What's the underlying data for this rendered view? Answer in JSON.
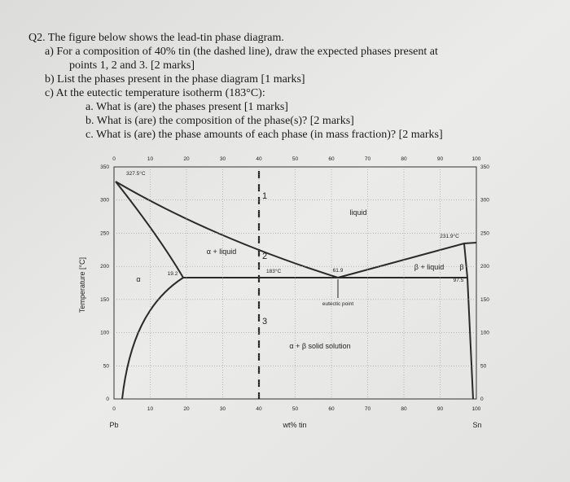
{
  "question": {
    "title": "Q2. The figure below shows the lead-tin phase diagram.",
    "lines": [
      "a)  For a composition of 40% tin (the dashed line), draw the expected phases present at",
      "points 1, 2 and 3. [2 marks]",
      "b)  List the phases present in the phase diagram [1 marks]",
      "c)  At the eutectic temperature isotherm (183°C):",
      "a.   What is (are) the phases present [1 marks]",
      "b.   What is (are) the composition of the phase(s)? [2 marks]",
      "c.   What is (are) the phase amounts of each phase (in mass fraction)? [2 marks]"
    ]
  },
  "diagram": {
    "y_label": "Temperature [°C]",
    "x_label": "wt% tin",
    "left_end": "Pb",
    "right_end": "Sn",
    "temperature_ticks": [
      "350",
      "300",
      "250",
      "200",
      "150",
      "100",
      "50",
      "0"
    ],
    "composition_ticks": [
      "0",
      "10",
      "20",
      "30",
      "40",
      "50",
      "60",
      "70",
      "80",
      "90",
      "100"
    ],
    "labels": {
      "lead_melting": "327.5°C",
      "liquid": "liquid",
      "alpha_liquid": "α + liquid",
      "point1": "1",
      "point2": "2",
      "point3": "3",
      "eutectic_temp": "183°C",
      "eutectic_comp": "61.9",
      "alpha_limit": "19.2",
      "alpha": "α",
      "eutectic_point": "eutectic point",
      "alpha_beta": "α + β solid solution",
      "beta_liquid": "β + liquid",
      "beta": "β",
      "beta_limit": "97.5",
      "tin_melting": "231.9°C"
    }
  }
}
